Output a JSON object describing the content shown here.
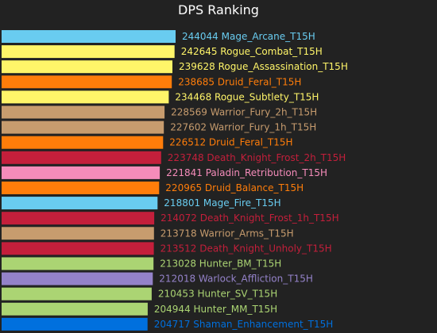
{
  "chart_data": {
    "type": "bar",
    "orientation": "horizontal",
    "title": "DPS Ranking",
    "xlabel": "",
    "ylabel": "",
    "grid": false,
    "legend": "none",
    "xlim": [
      0,
      244044
    ],
    "background": "#222222",
    "bars": [
      {
        "value": 244044,
        "label": "Mage_Arcane_T15H",
        "color": "#69ccf0"
      },
      {
        "value": 242645,
        "label": "Rogue_Combat_T15H",
        "color": "#fff569"
      },
      {
        "value": 239628,
        "label": "Rogue_Assassination_T15H",
        "color": "#fff569"
      },
      {
        "value": 238685,
        "label": "Druid_Feral_T15H",
        "color": "#ff7d0a"
      },
      {
        "value": 234468,
        "label": "Rogue_Subtlety_T15H",
        "color": "#fff569"
      },
      {
        "value": 228569,
        "label": "Warrior_Fury_2h_T15H",
        "color": "#c79c6e"
      },
      {
        "value": 227602,
        "label": "Warrior_Fury_1h_T15H",
        "color": "#c79c6e"
      },
      {
        "value": 226512,
        "label": "Druid_Feral_T15H",
        "color": "#ff7d0a"
      },
      {
        "value": 223748,
        "label": "Death_Knight_Frost_2h_T15H",
        "color": "#c41f3b"
      },
      {
        "value": 221841,
        "label": "Paladin_Retribution_T15H",
        "color": "#f58cba"
      },
      {
        "value": 220965,
        "label": "Druid_Balance_T15H",
        "color": "#ff7d0a"
      },
      {
        "value": 218801,
        "label": "Mage_Fire_T15H",
        "color": "#69ccf0"
      },
      {
        "value": 214072,
        "label": "Death_Knight_Frost_1h_T15H",
        "color": "#c41f3b"
      },
      {
        "value": 213718,
        "label": "Warrior_Arms_T15H",
        "color": "#c79c6e"
      },
      {
        "value": 213512,
        "label": "Death_Knight_Unholy_T15H",
        "color": "#c41f3b"
      },
      {
        "value": 213028,
        "label": "Hunter_BM_T15H",
        "color": "#abd473"
      },
      {
        "value": 212018,
        "label": "Warlock_Affliction_T15H",
        "color": "#9482c9"
      },
      {
        "value": 210453,
        "label": "Hunter_SV_T15H",
        "color": "#abd473"
      },
      {
        "value": 204944,
        "label": "Hunter_MM_T15H",
        "color": "#abd473"
      },
      {
        "value": 204717,
        "label": "Shaman_Enhancement_T15H",
        "color": "#0070de"
      }
    ]
  }
}
